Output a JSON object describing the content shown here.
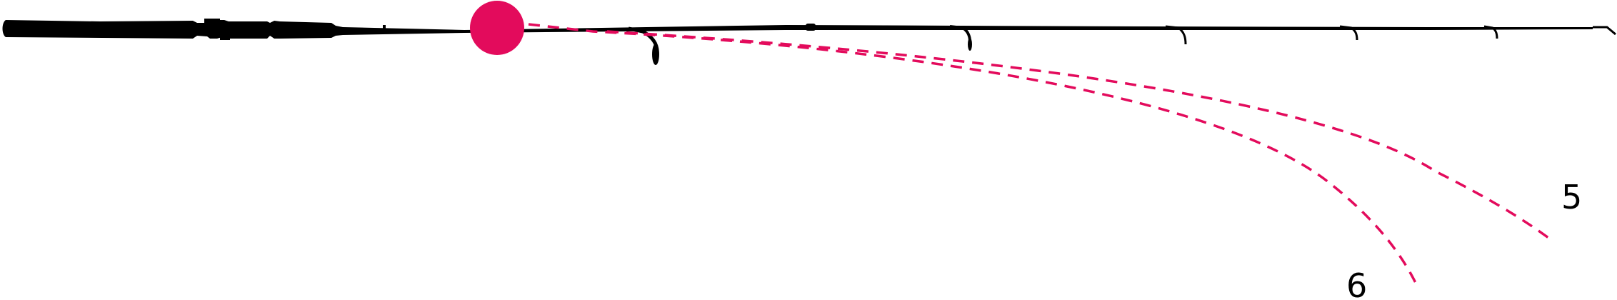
{
  "diagram": {
    "colors": {
      "rod": "#000000",
      "pivot": "#e30b5c",
      "bend_curve": "#e30b5c",
      "label": "#000000"
    },
    "bend_curves": [
      {
        "label": "6"
      },
      {
        "label": "5"
      }
    ]
  }
}
